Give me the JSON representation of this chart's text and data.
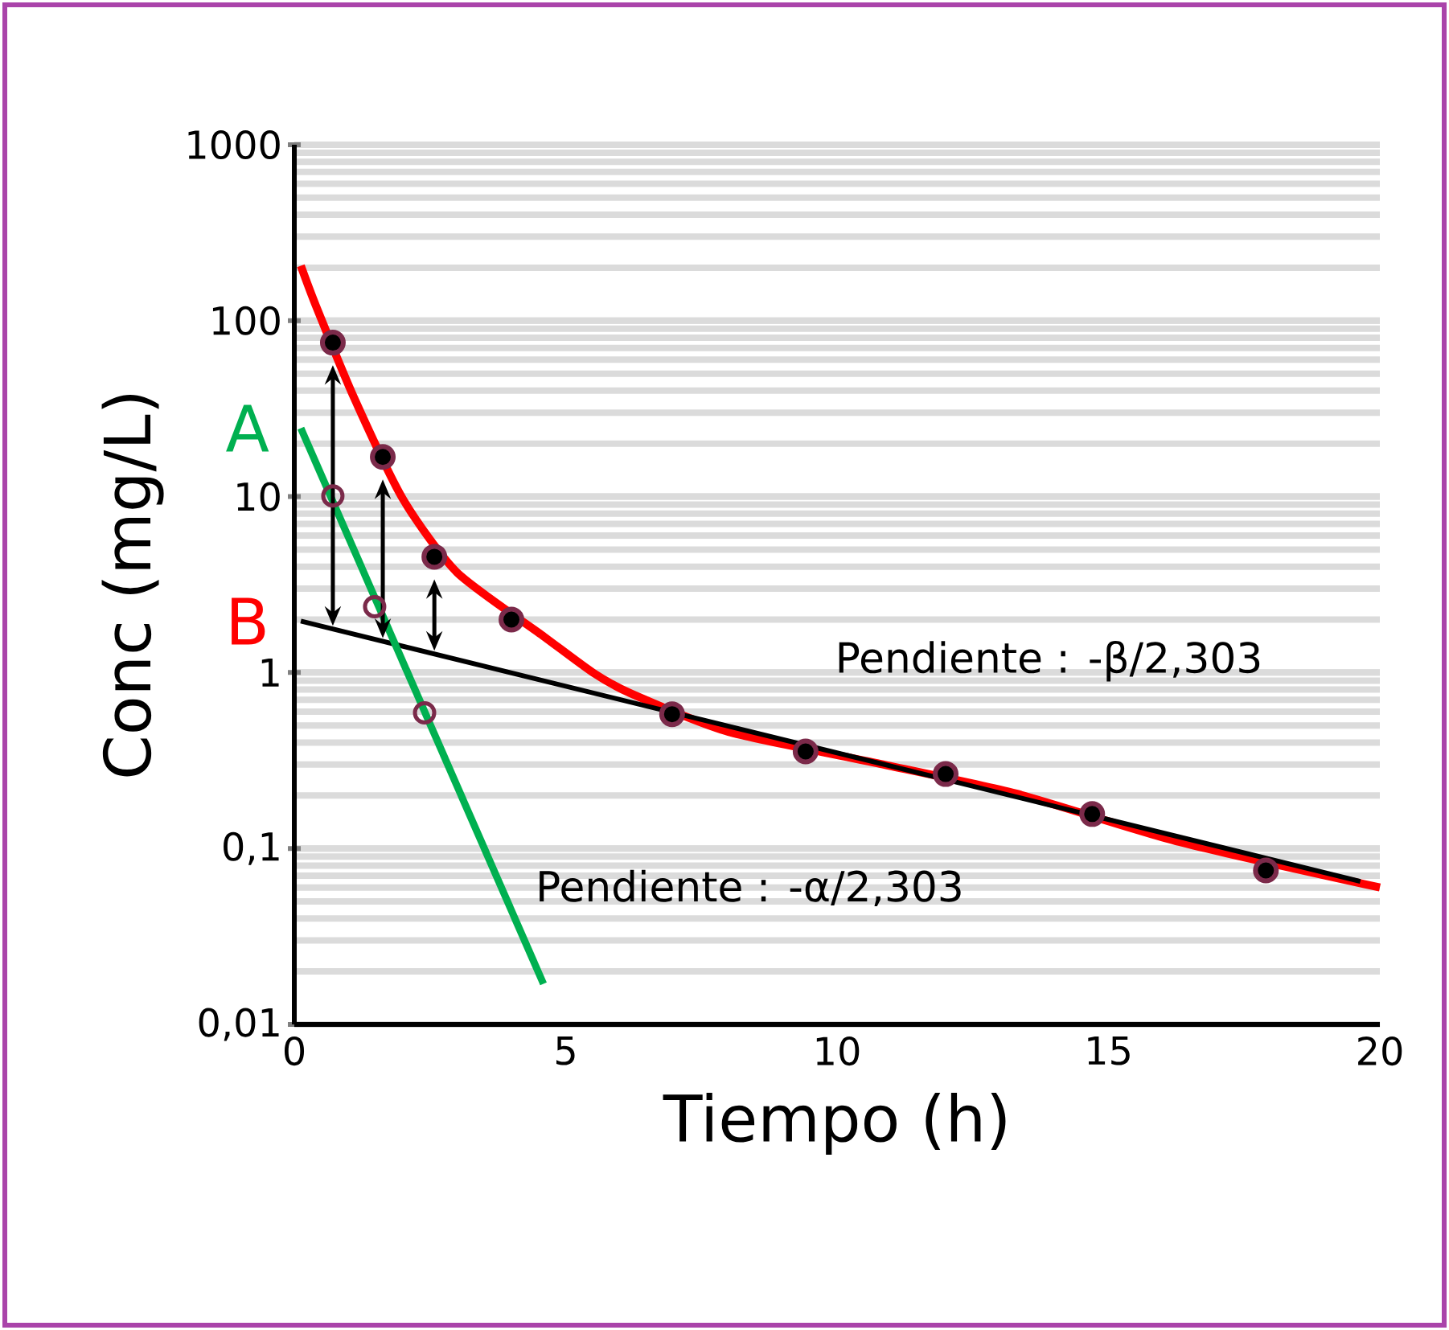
{
  "chart_data": {
    "type": "line",
    "xlabel": "Tiempo (h)",
    "ylabel": "Conc (mg/L)",
    "xlim": [
      0,
      20
    ],
    "xticks": [
      0,
      5,
      10,
      15,
      20
    ],
    "ylim": [
      0.01,
      1000
    ],
    "yticks": [
      {
        "value": 0.01,
        "label": "0,01"
      },
      {
        "value": 0.1,
        "label": "0,1"
      },
      1,
      10,
      100,
      1000
    ],
    "log": "y",
    "grid": "y",
    "line_style": "solid",
    "series": [
      {
        "color": "#ff0000",
        "marker": "none",
        "x": [
          0.12,
          0.4,
          1.1,
          2.0,
          3.0,
          4.6,
          5.5,
          6.2,
          8.0,
          10.7,
          13.3,
          16.3,
          20.0
        ],
        "values": [
          205,
          121,
          36.5,
          9.7,
          3.7,
          1.6,
          1.0,
          0.76,
          0.46,
          0.307,
          0.205,
          0.109,
          0.06
        ]
      },
      {
        "color": "#000000",
        "marker": "none",
        "x": [
          0.12,
          19.64
        ],
        "values": [
          1.96,
          0.065
        ]
      },
      {
        "color": "#00b050",
        "marker": "none",
        "x": [
          0.12,
          4.59
        ],
        "values": [
          24.5,
          0.017
        ]
      },
      {
        "type": "scatter",
        "color": "#000000",
        "marker": "circle",
        "x": [
          0.71,
          1.63,
          2.58,
          4.0,
          6.96,
          9.42,
          12.0,
          14.7,
          17.9
        ],
        "values": [
          75,
          16.8,
          4.55,
          2.0,
          0.58,
          0.356,
          0.265,
          0.157,
          0.075
        ]
      },
      {
        "type": "scatter",
        "color": "#7b2a4a",
        "marker": "circle",
        "x": [
          0.71,
          1.48,
          2.4
        ],
        "values": [
          10.1,
          2.37,
          0.59
        ]
      }
    ],
    "annotations": [
      {
        "text": "A",
        "x": 0,
        "y": 24.5
      },
      {
        "text": "B",
        "x": 0,
        "y": 1.96
      },
      "Pendiente : -β/2,303",
      "Pendiente : -α/2,303"
    ]
  }
}
